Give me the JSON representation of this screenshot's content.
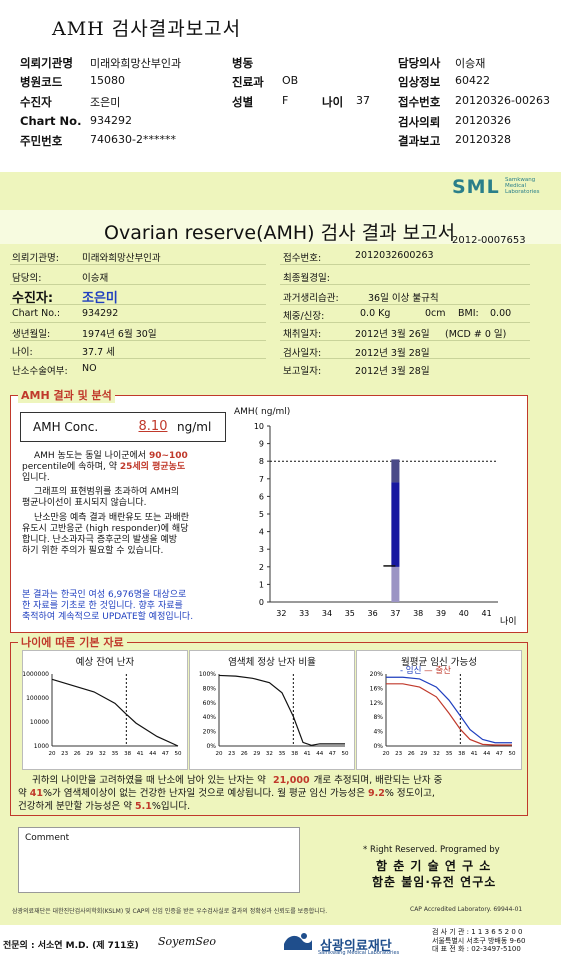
{
  "top": {
    "title": "AMH 검사결과보고서",
    "rows": [
      {
        "l1": "의뢰기관명",
        "v1": "미래와희망산부인과",
        "l2": "병동",
        "v2": "",
        "l3": "담당의사",
        "v3": "이승재"
      },
      {
        "l1": "병원코드",
        "v1": "15080",
        "l2": "진료과",
        "v2": "OB",
        "l3": "임상정보",
        "v3": "60422"
      },
      {
        "l1": "수진자",
        "v1": "조은미",
        "l2": "성별",
        "v2": "F",
        "l2b": "나이",
        "v2b": "37",
        "l3": "접수번호",
        "v3": "20120326-00263"
      },
      {
        "l1": "Chart No.",
        "v1": "934292",
        "l2": "",
        "v2": "",
        "l3": "검사의뢰",
        "v3": "20120326"
      },
      {
        "l1": "주민번호",
        "v1": "740630-2******",
        "l2": "",
        "v2": "",
        "l3": "결과보고",
        "v3": "20120328"
      }
    ]
  },
  "sheet": {
    "logo": "SML",
    "logo_sub": "Samkwang Medical Laboratories",
    "title": "Ovarian reserve(AMH) 검사 결과 보고서",
    "report_no": "2012-0007653",
    "patient": {
      "inst_l": "의뢰기관명:",
      "inst_v": "미래와희망산부인과",
      "doc_l": "담당의:",
      "doc_v": "이승재",
      "name_l": "수진자:",
      "name_v": "조은미",
      "chart_l": "Chart No.:",
      "chart_v": "934292",
      "birth_l": "생년월일:",
      "birth_v": "1974년 6월 30일",
      "age_l": "나이:",
      "age_v": "37.7 세",
      "surg_l": "난소수술여부:",
      "surg_v": "NO",
      "recv_l": "접수번호:",
      "recv_v": "2012032600263",
      "lmp_l": "최종월경일:",
      "lmp_v": "",
      "hist_l": "과거생리습관:",
      "hist_v": "36일 이상 불규칙",
      "wt_l": "체중/신장:",
      "wt_v": "0.0 Kg",
      "ht_v": "0cm",
      "bmi_l": "BMI:",
      "bmi_v": "0.00",
      "draw_l": "채취일자:",
      "draw_v": "2012년 3월 26일",
      "mcd_v": "(MCD # 0 일)",
      "test_l": "검사일자:",
      "test_v": "2012년 3월 28일",
      "rep_l": "보고일자:",
      "rep_v": "2012년 3월 28일"
    },
    "amh": {
      "heading": "AMH 결과 및 분석",
      "conc_label": "AMH Conc.",
      "conc_value": "8.10",
      "conc_unit": "ng/ml",
      "p1a": "AMH 농도는 동일 나이군에서",
      "p1b": "90~100",
      "p1c": "percentile에 속하며, 약",
      "p1d": "25세의 평균농도",
      "p1e": "입니다.",
      "p2a": "그래프의 표현범위를 초과하여 AMH의",
      "p2b": "평균나이선이 표시되지 않습니다.",
      "p3a": "난소만응 예측 결과 배란유도 또는 과배란",
      "p3b": "유도시 고반응군 (high responder)에 해당",
      "p3c": "합니다. 난소과자극 증후군의 발생을 예방",
      "p3d": "하기 위한 주의가 필요할 수 있습니다.",
      "p4a": "본 결과는 한국인 여성 6,976명을 대상으로",
      "p4b": "한 자료를 기초로 한 것입니다. 향후 자료를",
      "p4c": "축적하여 계속적으로 UPDATE할 예정입니다."
    },
    "age": {
      "heading": "나이에 따른 기본 자료",
      "m1_title": "예상 잔여 난자",
      "m2_title": "염색체 정상 난자 비율",
      "m3_title": "월평균 임신 가능성",
      "m3_legend_a": "임신",
      "m3_legend_b": "출산",
      "s1a": "귀하의 나이만을 고려하였을 때 난소에 남아 있는 난자는 약",
      "s1b": "21,000",
      "s1c": "개로 추정되며, 배란되는 난자 중",
      "s2a": "약",
      "s2b": "41",
      "s2c": "%가 염색체이상이 없는 건강한 난자일 것으로 예상됩니다. 월 평균 임신 가능성은",
      "s2d": "9.2",
      "s2e": "% 정도이고,",
      "s3a": "건강하게 분만할 가능성은 약",
      "s3b": "5.1",
      "s3c": "%입니다."
    },
    "comment_label": "Comment",
    "rights": "* Right Reserved. Programed by",
    "org1": "함 춘 기 술 연 구 소",
    "org2": "함춘 불임·유전 연구소",
    "fine": "삼광의료재단은 대한진단검사의학회(KSLM) 및 CAP의 신임 인증을 받은 우수검사실로 결과의 정확성과 신뢰도를 보증합니다.",
    "cap": "CAP  Accredited  Laboratory.  69944-01",
    "specialist": "전문의 : 서소연 M.D. (제 711호)",
    "signature": "SoyemSeo",
    "foundation": "삼광의료재단",
    "foundation_sub": "Samkwang Medical Laboratories",
    "contact1": "검 사 기 관 : 1 1 3 6 5 2 0 0",
    "contact2": "서울특별시 서초구 방배동 9-60",
    "contact3": "대 표 전 화 : 02-3497-5100"
  },
  "chart_data": [
    {
      "type": "bar",
      "title": "",
      "ylabel": "AMH( ng/ml)",
      "xlabel": "나이",
      "x": [
        32,
        33,
        34,
        35,
        36,
        37,
        38,
        39,
        40,
        41
      ],
      "ylim": [
        0,
        10
      ],
      "yticks": [
        0,
        1,
        2,
        3,
        4,
        5,
        6,
        7,
        8,
        9,
        10
      ],
      "patient_value": 8.1,
      "patient_age": 37,
      "range_bars": [
        {
          "x": 37,
          "from": 0,
          "to": 8.1,
          "color": "#9b94c4"
        },
        {
          "x": 37,
          "from": 2,
          "to": 6.8,
          "color": "#1818a0"
        },
        {
          "x": 37,
          "from": 6.8,
          "to": 8.1,
          "color": "#4a4a88"
        }
      ],
      "mean_marker": 2.05,
      "threshold_line": 8.0
    },
    {
      "type": "line",
      "title": "예상 잔여 난자",
      "x": [
        20,
        30,
        35,
        37.7,
        40,
        45,
        50
      ],
      "y": [
        600000,
        180000,
        60000,
        21000,
        9000,
        2500,
        1000
      ],
      "ylim": [
        1000,
        1000000
      ],
      "log_y": true,
      "yticks": [
        "1000",
        "10000",
        "100000",
        "1000000"
      ],
      "xticks": [
        "20",
        "23",
        "26",
        "29",
        "32",
        "35",
        "38",
        "41",
        "44",
        "47",
        "50"
      ],
      "marker_x": 37.7
    },
    {
      "type": "line",
      "title": "염색체 정상 난자 비율",
      "x": [
        20,
        24,
        28,
        32,
        35,
        37.7,
        40,
        42,
        44,
        47,
        50
      ],
      "y": [
        98,
        97,
        94,
        88,
        74,
        41,
        5,
        1,
        3,
        3,
        3
      ],
      "ylim": [
        0,
        100
      ],
      "yticks": [
        "0%",
        "20%",
        "40%",
        "60%",
        "80%",
        "100%"
      ],
      "xticks": [
        "20",
        "23",
        "26",
        "29",
        "32",
        "35",
        "38",
        "41",
        "44",
        "47",
        "50"
      ],
      "marker_x": 37.7
    },
    {
      "type": "line",
      "title": "월평균 임신 가능성",
      "x": [
        20,
        24,
        28,
        32,
        35,
        37.7,
        40,
        43,
        46,
        50
      ],
      "series": [
        {
          "name": "임신",
          "values": [
            21,
            21,
            20.5,
            18,
            14,
            9.2,
            5,
            2,
            1,
            1
          ],
          "color": "#1f3fbf"
        },
        {
          "name": "출산",
          "values": [
            19,
            19,
            18,
            15,
            10,
            5.1,
            2,
            0.5,
            0.3,
            0.3
          ],
          "color": "#c0392b"
        }
      ],
      "ylim": [
        0,
        22
      ],
      "yticks": [
        "0%",
        "4%",
        "8%",
        "12%",
        "16%",
        "20%"
      ],
      "xticks": [
        "20",
        "23",
        "26",
        "29",
        "32",
        "35",
        "38",
        "41",
        "44",
        "47",
        "50"
      ],
      "marker_x": 37.7
    }
  ]
}
